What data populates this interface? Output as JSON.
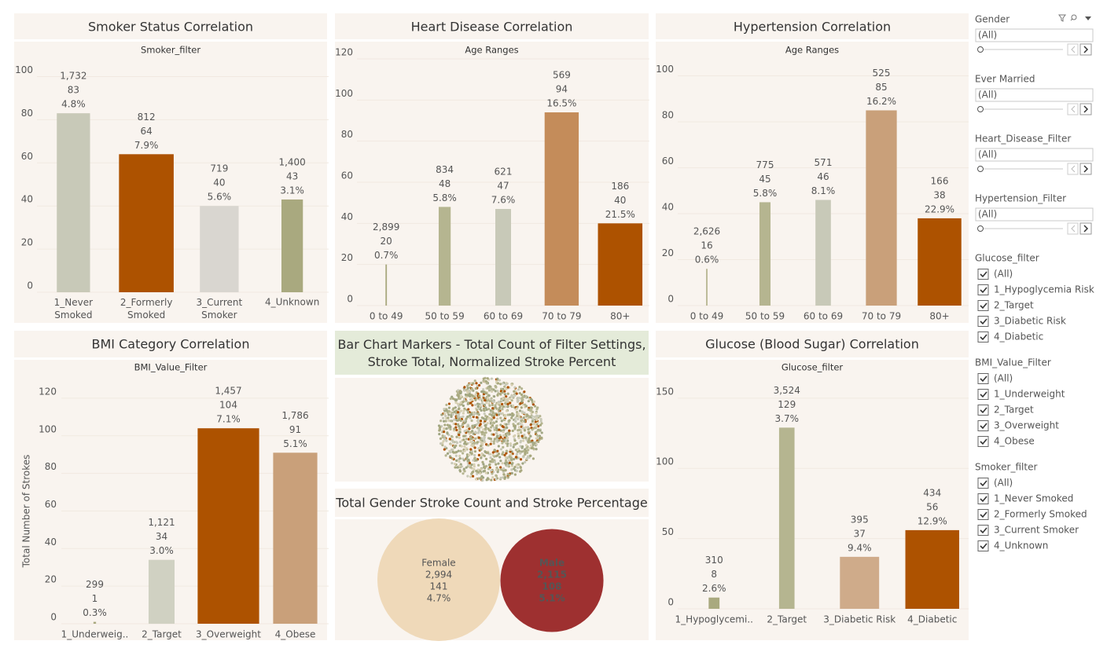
{
  "chart_data": [
    {
      "type": "bar",
      "title": "Smoker Status Correlation",
      "subtitle": "Smoker_filter",
      "categories": [
        "1_Never Smoked",
        "2_Formerly Smoked",
        "3_Current Smoker",
        "4_Unknown"
      ],
      "values": [
        83,
        64,
        40,
        43
      ],
      "counts": [
        1732,
        812,
        719,
        1400
      ],
      "count_labels": [
        "1,732",
        "812",
        "719",
        "1,400"
      ],
      "rates": [
        4.8,
        7.9,
        5.6,
        3.1
      ],
      "rate_labels": [
        "4.8%",
        "7.9%",
        "5.6%",
        "3.1%"
      ],
      "colors": [
        "#c8c9b8",
        "#ad5200",
        "#d9d6d0",
        "#a9a97f"
      ],
      "ylim": [
        0,
        102
      ],
      "yticks": [
        0,
        20,
        40,
        60,
        80,
        100
      ],
      "grid": true
    },
    {
      "type": "bar",
      "title": "Heart Disease Correlation",
      "subtitle": "Age Ranges",
      "categories": [
        "0 to 49",
        "50 to 59",
        "60 to 69",
        "70 to 79",
        "80+"
      ],
      "values": [
        20,
        48,
        47,
        94,
        40
      ],
      "counts": [
        2899,
        834,
        621,
        569,
        186
      ],
      "count_labels": [
        "2,899",
        "834",
        "621",
        "569",
        "186"
      ],
      "rates": [
        0.7,
        5.8,
        7.6,
        16.5,
        21.5
      ],
      "rate_labels": [
        "0.7%",
        "5.8%",
        "7.6%",
        "16.5%",
        "21.5%"
      ],
      "colors": [
        "#a9a97f",
        "#b5b590",
        "#c8c9b8",
        "#c48c5a",
        "#ad5200"
      ],
      "ylim": [
        0,
        120
      ],
      "yticks": [
        0,
        20,
        40,
        60,
        80,
        100,
        120
      ],
      "grid": true
    },
    {
      "type": "bar",
      "title": "Hypertension Correlation",
      "subtitle": "Age Ranges",
      "categories": [
        "0 to 49",
        "50 to 59",
        "60 to 69",
        "70 to 79",
        "80+"
      ],
      "values": [
        16,
        45,
        46,
        85,
        38
      ],
      "counts": [
        2626,
        775,
        571,
        525,
        166
      ],
      "count_labels": [
        "2,626",
        "775",
        "571",
        "525",
        "166"
      ],
      "rates": [
        0.6,
        5.8,
        8.1,
        16.2,
        22.9
      ],
      "rate_labels": [
        "0.6%",
        "5.8%",
        "8.1%",
        "16.2%",
        "22.9%"
      ],
      "colors": [
        "#a9a97f",
        "#b5b590",
        "#c8c9b8",
        "#c9a07a",
        "#ad5200"
      ],
      "ylim": [
        0,
        105
      ],
      "yticks": [
        0,
        20,
        40,
        60,
        80,
        100
      ],
      "grid": true
    },
    {
      "type": "bar",
      "title": "BMI Category Correlation",
      "subtitle": "BMI_Value_Filter",
      "ylabel": "Total Number of Strokes",
      "categories": [
        "1_Underweig..",
        "2_Target",
        "3_Overweight",
        "4_Obese"
      ],
      "values": [
        1,
        34,
        104,
        91
      ],
      "counts": [
        299,
        1121,
        1457,
        1786
      ],
      "count_labels": [
        "299",
        "1,121",
        "1,457",
        "1,786"
      ],
      "rates": [
        0.3,
        3.0,
        7.1,
        5.1
      ],
      "rate_labels": [
        "0.3%",
        "3.0%",
        "7.1%",
        "5.1%"
      ],
      "colors": [
        "#a9a97f",
        "#d0d1c2",
        "#ad5200",
        "#c9a07a"
      ],
      "ylim": [
        0,
        130
      ],
      "yticks": [
        0,
        20,
        40,
        60,
        80,
        100,
        120
      ],
      "grid": true
    },
    {
      "type": "dots",
      "title": "Bar Chart Markers - Total Count of Filter Settings, Stroke Total, Normalized Stroke Percent"
    },
    {
      "type": "bubble",
      "title": "Total Gender Stroke Count and Stroke Percentage",
      "categories": [
        "Female",
        "Male"
      ],
      "counts": [
        2994,
        2115
      ],
      "count_labels": [
        "2,994",
        "2,115"
      ],
      "values": [
        141,
        108
      ],
      "rates": [
        4.7,
        5.1
      ],
      "rate_labels": [
        "4.7%",
        "5.1%"
      ],
      "colors": [
        "#efd9b9",
        "#9e3030"
      ]
    },
    {
      "type": "bar",
      "title": "Glucose (Blood Sugar) Correlation",
      "subtitle": "Glucose_filter",
      "categories": [
        "1_Hypoglycemi..",
        "2_Target",
        "3_Diabetic Risk",
        "4_Diabetic"
      ],
      "values": [
        8,
        129,
        37,
        56
      ],
      "counts": [
        310,
        3524,
        395,
        434
      ],
      "count_labels": [
        "310",
        "3,524",
        "395",
        "434"
      ],
      "rates": [
        2.6,
        3.7,
        9.4,
        12.9
      ],
      "rate_labels": [
        "2.6%",
        "3.7%",
        "9.4%",
        "12.9%"
      ],
      "colors": [
        "#a9a97f",
        "#b5b590",
        "#cfab8a",
        "#ad5200"
      ],
      "ylim": [
        0,
        165
      ],
      "yticks": [
        0,
        50,
        100,
        150
      ],
      "grid": true
    }
  ],
  "filters": {
    "dropdowns": [
      {
        "label": "Gender",
        "value": "(All)"
      },
      {
        "label": "Ever Married",
        "value": "(All)"
      },
      {
        "label": "Heart_Disease_Filter",
        "value": "(All)"
      },
      {
        "label": "Hypertension_Filter",
        "value": "(All)"
      }
    ],
    "checklists": [
      {
        "label": "Glucose_filter",
        "options": [
          "(All)",
          "1_Hypoglycemia Risk",
          "2_Target",
          "3_Diabetic Risk",
          "4_Diabetic"
        ]
      },
      {
        "label": "BMI_Value_Filter",
        "options": [
          "(All)",
          "1_Underweight",
          "2_Target",
          "3_Overweight",
          "4_Obese"
        ]
      },
      {
        "label": "Smoker_filter",
        "options": [
          "(All)",
          "1_Never Smoked",
          "2_Formerly Smoked",
          "3_Current Smoker",
          "4_Unknown"
        ]
      }
    ]
  }
}
